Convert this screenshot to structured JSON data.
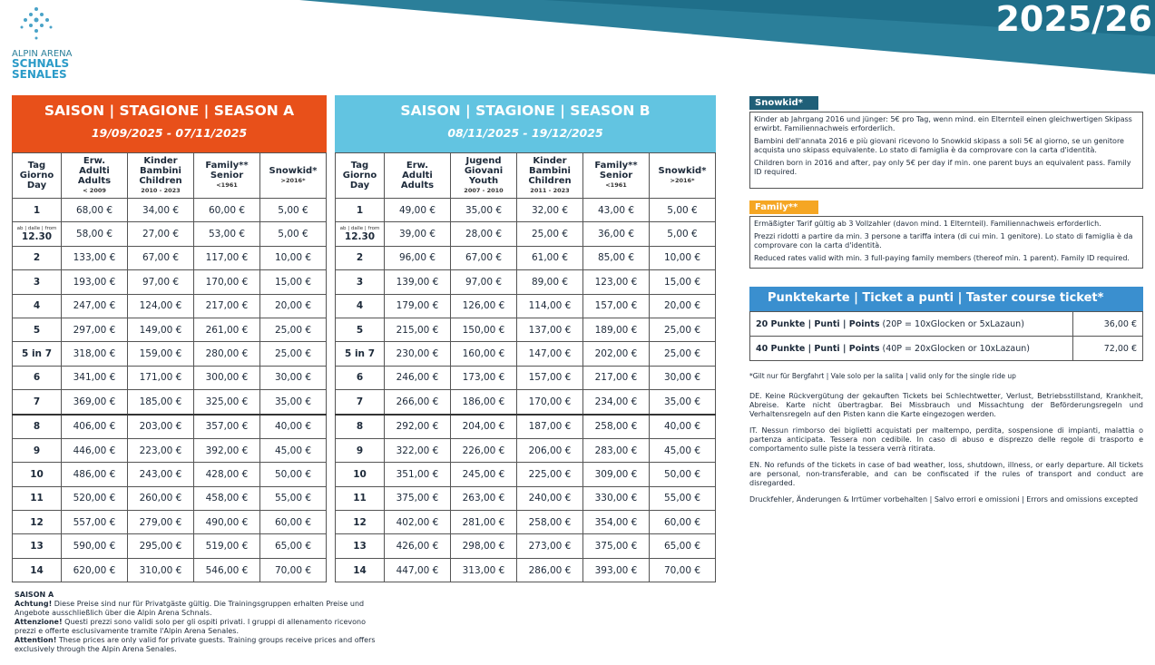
{
  "header": {
    "year": "2025/26",
    "logo": [
      "ALPIN ARENA",
      "SCHNALS",
      "SENALES"
    ]
  },
  "season_a": {
    "title": "SAISON | STAGIONE | SEASON A",
    "dates": "19/09/2025 - 07/11/2025",
    "columns": [
      {
        "lines": [
          "Tag",
          "Giorno",
          "Day"
        ]
      },
      {
        "lines": [
          "Erw.",
          "Adulti",
          "Adults"
        ],
        "note": "< 2009"
      },
      {
        "lines": [
          "Kinder",
          "Bambini",
          "Children"
        ],
        "note": "2010 - 2023"
      },
      {
        "lines": [
          "Family**",
          "Senior"
        ],
        "note": "<1961"
      },
      {
        "lines": [
          "Snowkid*"
        ],
        "note": ">2016*"
      }
    ],
    "rows": [
      {
        "day": "1",
        "prices": [
          "68,00 €",
          "34,00 €",
          "60,00 €",
          "5,00 €"
        ]
      },
      {
        "day": "12.30",
        "day_note": "ab | dalle | from",
        "prices": [
          "58,00 €",
          "27,00 €",
          "53,00 €",
          "5,00 €"
        ]
      },
      {
        "day": "2",
        "prices": [
          "133,00 €",
          "67,00 €",
          "117,00 €",
          "10,00 €"
        ]
      },
      {
        "day": "3",
        "prices": [
          "193,00 €",
          "97,00 €",
          "170,00 €",
          "15,00 €"
        ]
      },
      {
        "day": "4",
        "prices": [
          "247,00 €",
          "124,00 €",
          "217,00 €",
          "20,00 €"
        ]
      },
      {
        "day": "5",
        "prices": [
          "297,00 €",
          "149,00 €",
          "261,00 €",
          "25,00 €"
        ]
      },
      {
        "day": "5 in 7",
        "prices": [
          "318,00 €",
          "159,00 €",
          "280,00 €",
          "25,00 €"
        ]
      },
      {
        "day": "6",
        "prices": [
          "341,00 €",
          "171,00 €",
          "300,00 €",
          "30,00 €"
        ]
      },
      {
        "day": "7",
        "prices": [
          "369,00 €",
          "185,00 €",
          "325,00 €",
          "35,00 €"
        ]
      },
      {
        "day": "8",
        "prices": [
          "406,00 €",
          "203,00 €",
          "357,00 €",
          "40,00 €"
        ]
      },
      {
        "day": "9",
        "prices": [
          "446,00 €",
          "223,00 €",
          "392,00 €",
          "45,00 €"
        ]
      },
      {
        "day": "10",
        "prices": [
          "486,00 €",
          "243,00 €",
          "428,00 €",
          "50,00 €"
        ]
      },
      {
        "day": "11",
        "prices": [
          "520,00 €",
          "260,00 €",
          "458,00 €",
          "55,00 €"
        ]
      },
      {
        "day": "12",
        "prices": [
          "557,00 €",
          "279,00 €",
          "490,00 €",
          "60,00 €"
        ]
      },
      {
        "day": "13",
        "prices": [
          "590,00 €",
          "295,00 €",
          "519,00 €",
          "65,00 €"
        ]
      },
      {
        "day": "14",
        "prices": [
          "620,00 €",
          "310,00 €",
          "546,00 €",
          "70,00 €"
        ]
      }
    ]
  },
  "season_b": {
    "title": "SAISON | STAGIONE | SEASON B",
    "dates": "08/11/2025 - 19/12/2025",
    "columns": [
      {
        "lines": [
          "Tag",
          "Giorno",
          "Day"
        ]
      },
      {
        "lines": [
          "Erw.",
          "Adulti",
          "Adults"
        ]
      },
      {
        "lines": [
          "Jugend",
          "Giovani",
          "Youth"
        ],
        "note": "2007 - 2010"
      },
      {
        "lines": [
          "Kinder",
          "Bambini",
          "Children"
        ],
        "note": "2011 - 2023"
      },
      {
        "lines": [
          "Family**",
          "Senior"
        ],
        "note": "<1961"
      },
      {
        "lines": [
          "Snowkid*"
        ],
        "note": ">2016*"
      }
    ],
    "rows": [
      {
        "day": "1",
        "prices": [
          "49,00 €",
          "35,00 €",
          "32,00 €",
          "43,00 €",
          "5,00 €"
        ]
      },
      {
        "day": "12.30",
        "day_note": "ab | dalle | from",
        "prices": [
          "39,00 €",
          "28,00 €",
          "25,00 €",
          "36,00 €",
          "5,00 €"
        ]
      },
      {
        "day": "2",
        "prices": [
          "96,00 €",
          "67,00 €",
          "61,00 €",
          "85,00 €",
          "10,00 €"
        ]
      },
      {
        "day": "3",
        "prices": [
          "139,00 €",
          "97,00 €",
          "89,00 €",
          "123,00 €",
          "15,00 €"
        ]
      },
      {
        "day": "4",
        "prices": [
          "179,00 €",
          "126,00 €",
          "114,00 €",
          "157,00 €",
          "20,00 €"
        ]
      },
      {
        "day": "5",
        "prices": [
          "215,00 €",
          "150,00 €",
          "137,00 €",
          "189,00 €",
          "25,00 €"
        ]
      },
      {
        "day": "5 in 7",
        "prices": [
          "230,00 €",
          "160,00 €",
          "147,00 €",
          "202,00 €",
          "25,00 €"
        ]
      },
      {
        "day": "6",
        "prices": [
          "246,00 €",
          "173,00 €",
          "157,00 €",
          "217,00 €",
          "30,00 €"
        ]
      },
      {
        "day": "7",
        "prices": [
          "266,00 €",
          "186,00 €",
          "170,00 €",
          "234,00 €",
          "35,00 €"
        ]
      },
      {
        "day": "8",
        "prices": [
          "292,00 €",
          "204,00 €",
          "187,00 €",
          "258,00 €",
          "40,00 €"
        ]
      },
      {
        "day": "9",
        "prices": [
          "322,00 €",
          "226,00 €",
          "206,00 €",
          "283,00 €",
          "45,00 €"
        ]
      },
      {
        "day": "10",
        "prices": [
          "351,00 €",
          "245,00 €",
          "225,00 €",
          "309,00 €",
          "50,00 €"
        ]
      },
      {
        "day": "11",
        "prices": [
          "375,00 €",
          "263,00 €",
          "240,00 €",
          "330,00 €",
          "55,00 €"
        ]
      },
      {
        "day": "12",
        "prices": [
          "402,00 €",
          "281,00 €",
          "258,00 €",
          "354,00 €",
          "60,00 €"
        ]
      },
      {
        "day": "13",
        "prices": [
          "426,00 €",
          "298,00 €",
          "273,00 €",
          "375,00 €",
          "65,00 €"
        ]
      },
      {
        "day": "14",
        "prices": [
          "447,00 €",
          "313,00 €",
          "286,00 €",
          "393,00 €",
          "70,00 €"
        ]
      }
    ]
  },
  "snowkid": {
    "label": "Snowkid*",
    "paragraphs": [
      "Kinder ab Jahrgang 2016 und jünger: 5€ pro Tag, wenn mind. ein Elternteil einen gleichwertigen Skipass erwirbt. Familiennachweis erforderlich.",
      "Bambini dell'annata 2016 e più giovani ricevono lo Snowkid skipass a soli 5€ al giorno, se un genitore acquista uno skipass equivalente. Lo stato di famiglia è da comprovare con la carta d'identità.",
      "Children born in 2016 and after, pay only 5€ per day if min. one parent buys an equivalent pass. Family ID required."
    ]
  },
  "family": {
    "label": "Family**",
    "paragraphs": [
      "Ermäßigter Tarif gültig ab 3 Vollzahler (davon mind. 1 Elternteil). Familiennachweis erforderlich.",
      "Prezzi ridotti a partire da min. 3 persone a tariffa intera (di cui min. 1 genitore). Lo stato di famiglia è da comprovare con la carta d'identità.",
      "Reduced rates valid with min. 3  full-paying family members (thereof min. 1 parent). Family ID required."
    ]
  },
  "punktekarte": {
    "title": "Punktekarte | Ticket a punti | Taster course ticket*",
    "rows": [
      {
        "name": "20 Punkte | Punti | Points",
        "detail": "(20P = 10xGlocken or 5xLazaun)",
        "price": "36,00 €"
      },
      {
        "name": "40 Punkte | Punti | Points",
        "detail": "(40P = 20xGlocken or 10xLazaun)",
        "price": "72,00 €"
      }
    ],
    "footnote": "*Gilt nur für Bergfahrt | Vale solo per la salita | valid only for the single ride up"
  },
  "disclaimers": [
    "DE. Keine Rückvergütung der gekauften Tickets bei Schlechtwetter, Verlust, Betriebsstillstand, Krankheit, Abreise. Karte nicht übertragbar. Bei Missbrauch und Missachtung der Beförderungsregeln und Verhaltensregeln auf den Pisten kann die Karte eingezogen werden.",
    "IT. Nessun rimborso dei biglietti acquistati per maltempo, perdita, sospensione di impianti, malattia o partenza anticipata. Tessera non cedibile. In caso di abuso e disprezzo delle regole di trasporto e comportamento sulle piste la tessera verrà ritirata.",
    "EN. No refunds of the tickets in case of bad weather, loss, shutdown, illness, or early departure. All tickets are personal, non-transferable, and can be confiscated if the rules of transport and conduct are disregarded.",
    "Druckfehler, Änderungen & Irrtümer vorbehalten | Salvo errori e omissioni | Errors and omissions excepted"
  ],
  "season_a_notes": {
    "title": "SAISON A",
    "items": [
      {
        "lead": "Achtung!",
        "text": "Diese Preise sind nur für Privatgäste gültig. Die Trainingsgruppen erhalten Preise und Angebote ausschließlich über die Alpin Arena Schnals."
      },
      {
        "lead": "Attenzione!",
        "text": "Questi prezzi sono validi solo per gli ospiti privati. I gruppi di allenamento ricevono prezzi e offerte esclusivamente tramite l'Alpin Arena Senales."
      },
      {
        "lead": "Attention!",
        "text": "These prices are only valid for private guests. Training groups receive prices and offers exclusively through the Alpin Arena Senales."
      }
    ]
  }
}
